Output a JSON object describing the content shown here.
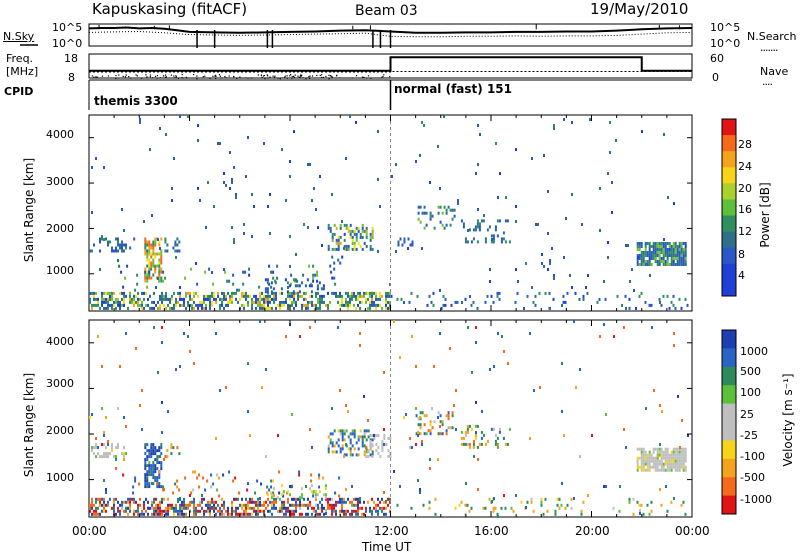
{
  "header": {
    "station": "Kapuskasing (fitACF)",
    "beam": "Beam 03",
    "date": "19/May/2010"
  },
  "chart_data": [
    {
      "type": "line",
      "panel": "noise-sky-search",
      "left_label": "N.Sky",
      "right_label": "N.Search",
      "left_ticks": [
        "10^5",
        "10^0"
      ],
      "right_ticks": [
        "10^5",
        "10^0"
      ],
      "sky_series": {
        "x": [
          0,
          0.5,
          1,
          1.5,
          2,
          2.5,
          3,
          3.5,
          4,
          5,
          6,
          7,
          8,
          9,
          10,
          11,
          12,
          13,
          14,
          15,
          16,
          17,
          18,
          19,
          20,
          21,
          22,
          23,
          24
        ],
        "y_log10": [
          4.0,
          4.1,
          4.1,
          4.2,
          4.0,
          4.1,
          3.9,
          3.6,
          3.2,
          3.1,
          3.0,
          3.1,
          3.2,
          3.3,
          3.5,
          3.6,
          3.3,
          3.0,
          3.0,
          3.1,
          3.1,
          3.2,
          3.2,
          3.3,
          3.3,
          3.5,
          3.8,
          4.0,
          4.1
        ]
      },
      "search_series": {
        "x": [
          0,
          1,
          2,
          3,
          4,
          5,
          6,
          7,
          8,
          9,
          10,
          11,
          12,
          13,
          14,
          15,
          16,
          17,
          18,
          19,
          20,
          21,
          22,
          23,
          24
        ],
        "y_log10": [
          3.1,
          3.2,
          3.3,
          3.0,
          2.6,
          2.5,
          2.4,
          2.5,
          2.6,
          2.7,
          2.8,
          2.9,
          2.2,
          2.1,
          2.1,
          2.2,
          2.2,
          2.3,
          2.2,
          2.3,
          2.3,
          2.4,
          2.7,
          3.0,
          3.1
        ]
      }
    },
    {
      "type": "line",
      "panel": "frequency-nave",
      "left_label": "Freq.\n[MHz]",
      "right_label": "Nave",
      "left_ticks": [
        "18",
        "8"
      ],
      "right_ticks": [
        "60",
        "0"
      ],
      "freq_series": {
        "x": [
          0,
          12,
          12,
          24
        ],
        "y": [
          10.5,
          10.5,
          10.7,
          10.7
        ]
      },
      "nave_series": {
        "x": [
          0,
          12,
          12,
          22,
          22,
          24
        ],
        "y": [
          18,
          18,
          52,
          52,
          18,
          18
        ]
      }
    },
    {
      "type": "table",
      "panel": "cpid",
      "label": "CPID",
      "segments": [
        {
          "start": 0,
          "end": 12,
          "text": "themis 3300"
        },
        {
          "start": 12,
          "end": 24,
          "text": "normal (fast) 151"
        }
      ]
    },
    {
      "type": "heatmap",
      "panel": "power",
      "ylabel": "Slant Range [km]",
      "y_ticks": [
        "4000",
        "3000",
        "2000",
        "1000"
      ],
      "ylim": [
        180,
        4500
      ],
      "xlim": [
        0,
        24
      ],
      "colorbar": {
        "label": "Power [dB]",
        "ticks": [
          "28",
          "24",
          "20",
          "16",
          "12",
          "8",
          "4"
        ],
        "range": [
          0,
          30
        ]
      },
      "scatter_regions": [
        {
          "x": [
            0.0,
            1.5
          ],
          "y": [
            1500,
            1800
          ],
          "dens": 0.35,
          "v": [
            6,
            14
          ]
        },
        {
          "x": [
            1.6,
            2.3
          ],
          "y": [
            1500,
            1800
          ],
          "dens": 0.12,
          "v": [
            4,
            12
          ]
        },
        {
          "x": [
            2.2,
            2.9
          ],
          "y": [
            800,
            1800
          ],
          "dens": 0.6,
          "v": [
            12,
            30
          ]
        },
        {
          "x": [
            3.0,
            3.6
          ],
          "y": [
            1500,
            1800
          ],
          "dens": 0.35,
          "v": [
            6,
            16
          ]
        },
        {
          "x": [
            0.0,
            12.0
          ],
          "y": [
            180,
            600
          ],
          "dens": 0.5,
          "v": [
            2,
            26
          ]
        },
        {
          "x": [
            1.0,
            10.0
          ],
          "y": [
            600,
            1200
          ],
          "dens": 0.07,
          "v": [
            2,
            20
          ]
        },
        {
          "x": [
            7.0,
            9.5
          ],
          "y": [
            600,
            900
          ],
          "dens": 0.25,
          "v": [
            2,
            14
          ]
        },
        {
          "x": [
            9.5,
            11.3
          ],
          "y": [
            1500,
            2100
          ],
          "dens": 0.45,
          "v": [
            4,
            24
          ]
        },
        {
          "x": [
            9.4,
            10.2
          ],
          "y": [
            900,
            1400
          ],
          "dens": 0.12,
          "v": [
            2,
            12
          ]
        },
        {
          "x": [
            12.0,
            24.0
          ],
          "y": [
            180,
            600
          ],
          "dens": 0.07,
          "v": [
            2,
            16
          ]
        },
        {
          "x": [
            12.2,
            13.0
          ],
          "y": [
            1600,
            1800
          ],
          "dens": 0.2,
          "v": [
            4,
            10
          ]
        },
        {
          "x": [
            13.0,
            14.6
          ],
          "y": [
            2000,
            2500
          ],
          "dens": 0.25,
          "v": [
            6,
            18
          ]
        },
        {
          "x": [
            14.8,
            16.8
          ],
          "y": [
            1700,
            2200
          ],
          "dens": 0.2,
          "v": [
            4,
            16
          ]
        },
        {
          "x": [
            21.8,
            23.8
          ],
          "y": [
            1200,
            1700
          ],
          "dens": 0.85,
          "v": [
            4,
            20
          ]
        },
        {
          "x": [
            0.0,
            24.0
          ],
          "y": [
            180,
            4500
          ],
          "dens": 0.01,
          "v": [
            2,
            14
          ]
        }
      ]
    },
    {
      "type": "heatmap",
      "panel": "velocity",
      "ylabel": "Slant Range [km]",
      "y_ticks": [
        "4000",
        "3000",
        "2000",
        "1000"
      ],
      "ylim": [
        180,
        4500
      ],
      "xlim": [
        0,
        24
      ],
      "xlabel": "Time UT",
      "x_ticks": [
        "00:00",
        "04:00",
        "08:00",
        "12:00",
        "16:00",
        "20:00",
        "00:00"
      ],
      "colorbar": {
        "label": "Velocity [m s⁻¹]",
        "ticks": [
          "1000",
          "500",
          "100",
          "25",
          "-25",
          "-100",
          "-500",
          "-1000"
        ],
        "range": [
          -1200,
          1200
        ]
      },
      "scatter_regions": [
        {
          "x": [
            0.0,
            1.5
          ],
          "y": [
            1500,
            1800
          ],
          "dens": 0.35,
          "v": [
            -30,
            30
          ]
        },
        {
          "x": [
            2.2,
            2.9
          ],
          "y": [
            800,
            1800
          ],
          "dens": 0.6,
          "v": [
            50,
            1100
          ]
        },
        {
          "x": [
            3.0,
            3.6
          ],
          "y": [
            1500,
            1800
          ],
          "dens": 0.35,
          "v": [
            -600,
            300
          ]
        },
        {
          "x": [
            0.0,
            12.0
          ],
          "y": [
            180,
            600
          ],
          "dens": 0.5,
          "v": [
            -1100,
            1100
          ]
        },
        {
          "x": [
            1.0,
            10.0
          ],
          "y": [
            600,
            1200
          ],
          "dens": 0.07,
          "v": [
            -800,
            800
          ]
        },
        {
          "x": [
            7.0,
            9.5
          ],
          "y": [
            600,
            900
          ],
          "dens": 0.25,
          "v": [
            -60,
            60
          ]
        },
        {
          "x": [
            9.5,
            11.3
          ],
          "y": [
            1500,
            2100
          ],
          "dens": 0.45,
          "v": [
            -200,
            600
          ]
        },
        {
          "x": [
            11.0,
            12.0
          ],
          "y": [
            1500,
            2000
          ],
          "dens": 0.25,
          "v": [
            -20,
            20
          ]
        },
        {
          "x": [
            12.0,
            24.0
          ],
          "y": [
            180,
            600
          ],
          "dens": 0.07,
          "v": [
            -200,
            200
          ]
        },
        {
          "x": [
            13.0,
            14.6
          ],
          "y": [
            2000,
            2500
          ],
          "dens": 0.25,
          "v": [
            -500,
            500
          ]
        },
        {
          "x": [
            14.8,
            16.8
          ],
          "y": [
            1700,
            2200
          ],
          "dens": 0.2,
          "v": [
            -300,
            300
          ]
        },
        {
          "x": [
            21.8,
            23.8
          ],
          "y": [
            1200,
            1700
          ],
          "dens": 0.85,
          "v": [
            -30,
            30
          ]
        },
        {
          "x": [
            0.0,
            24.0
          ],
          "y": [
            180,
            4500
          ],
          "dens": 0.01,
          "v": [
            -800,
            800
          ]
        }
      ]
    }
  ]
}
